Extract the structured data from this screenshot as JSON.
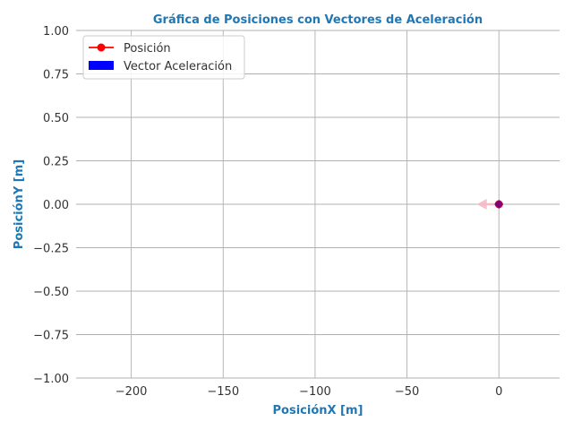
{
  "chart_data": {
    "type": "scatter",
    "title": "Gráfica de Posiciones con Vectores de Aceleración",
    "xlabel": "PosiciónX [m]",
    "ylabel": "PosiciónY [m]",
    "xlim": [
      -230,
      33
    ],
    "ylim": [
      -1.0,
      1.0
    ],
    "xticks": [
      -200,
      -150,
      -100,
      -50,
      0
    ],
    "xtick_labels": [
      "−200",
      "−150",
      "−100",
      "−50",
      "0"
    ],
    "yticks": [
      1.0,
      0.75,
      0.5,
      0.25,
      0.0,
      -0.25,
      -0.5,
      -0.75,
      -1.0
    ],
    "ytick_labels": [
      "1.00",
      "0.75",
      "0.50",
      "0.25",
      "0.00",
      "−0.25",
      "−0.50",
      "−0.75",
      "−1.00"
    ],
    "grid": true,
    "legend_position": "top-left",
    "series": [
      {
        "name": "Posición",
        "kind": "line-marker",
        "color": "#ff0000",
        "points": [
          [
            0,
            0
          ]
        ]
      },
      {
        "name": "Vector Aceleración",
        "kind": "quiver",
        "color": "#0000ff",
        "arrow_color": "#f4b8c8",
        "vectors": [
          [
            0,
            0,
            -12,
            0
          ]
        ]
      }
    ],
    "marker_overlay": {
      "x": 0,
      "y": 0,
      "color": "#800080"
    }
  },
  "colors": {
    "title": "#1f77b4",
    "axis_title": "#1f77b4",
    "grid": "#b0b0b0",
    "text": "#333333"
  }
}
